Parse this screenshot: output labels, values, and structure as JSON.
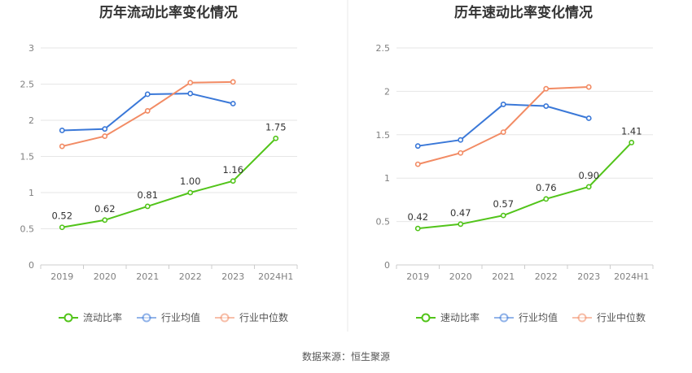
{
  "colors": {
    "green": "#52c41a",
    "blue": "#3a78d8",
    "orange": "#f28b64",
    "grid": "#e6e6e6",
    "divider": "#e8e8e8"
  },
  "chart_data": [
    {
      "type": "line",
      "title": "历年流动比率变化情况",
      "categories": [
        "2019",
        "2020",
        "2021",
        "2022",
        "2023",
        "2024H1"
      ],
      "ylim": [
        0,
        3
      ],
      "yticks": [
        "0",
        "0.5",
        "1",
        "1.5",
        "2",
        "2.5",
        "3"
      ],
      "grid": true,
      "legend_position": "bottom",
      "series": [
        {
          "name": "流动比率",
          "color": "#52c41a",
          "values": [
            0.52,
            0.62,
            0.81,
            1.0,
            1.16,
            1.75
          ],
          "labels": [
            "0.52",
            "0.62",
            "0.81",
            "1.00",
            "1.16",
            "1.75"
          ]
        },
        {
          "name": "行业均值",
          "color": "#3a78d8",
          "values": [
            1.86,
            1.88,
            2.36,
            2.37,
            2.23,
            null
          ]
        },
        {
          "name": "行业中位数",
          "color": "#f28b64",
          "values": [
            1.64,
            1.78,
            2.13,
            2.52,
            2.53,
            null
          ]
        }
      ]
    },
    {
      "type": "line",
      "title": "历年速动比率变化情况",
      "categories": [
        "2019",
        "2020",
        "2021",
        "2022",
        "2023",
        "2024H1"
      ],
      "ylim": [
        0,
        2.5
      ],
      "yticks": [
        "0",
        "0.5",
        "1",
        "1.5",
        "2",
        "2.5"
      ],
      "grid": true,
      "legend_position": "bottom",
      "series": [
        {
          "name": "速动比率",
          "color": "#52c41a",
          "values": [
            0.42,
            0.47,
            0.57,
            0.76,
            0.9,
            1.41
          ],
          "labels": [
            "0.42",
            "0.47",
            "0.57",
            "0.76",
            "0.90",
            "1.41"
          ]
        },
        {
          "name": "行业均值",
          "color": "#3a78d8",
          "values": [
            1.37,
            1.44,
            1.85,
            1.83,
            1.69,
            null
          ]
        },
        {
          "name": "行业中位数",
          "color": "#f28b64",
          "values": [
            1.16,
            1.29,
            1.53,
            2.03,
            2.05,
            null
          ]
        }
      ]
    }
  ],
  "footer": {
    "source": "数据来源：恒生聚源"
  }
}
